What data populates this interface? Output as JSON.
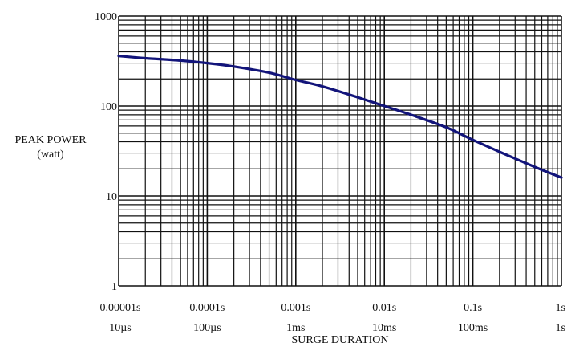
{
  "chart_data": {
    "type": "line",
    "title": "",
    "xlabel": "SURGE DURATION",
    "ylabel": [
      "PEAK POWER",
      "(watt)"
    ],
    "x_scale": "log",
    "y_scale": "log",
    "xlim": [
      1e-05,
      1
    ],
    "ylim": [
      1,
      1000
    ],
    "grid": true,
    "x_ticks": [
      {
        "value": 1e-05,
        "label": "0.00001s",
        "sublabel": "10µs"
      },
      {
        "value": 0.0001,
        "label": "0.0001s",
        "sublabel": "100µs"
      },
      {
        "value": 0.001,
        "label": "0.001s",
        "sublabel": "1ms"
      },
      {
        "value": 0.01,
        "label": "0.01s",
        "sublabel": "10ms"
      },
      {
        "value": 0.1,
        "label": "0.1s",
        "sublabel": "100ms"
      },
      {
        "value": 1,
        "label": "1s",
        "sublabel": "1s"
      }
    ],
    "y_ticks": [
      {
        "value": 1,
        "label": "1"
      },
      {
        "value": 10,
        "label": "10"
      },
      {
        "value": 100,
        "label": "100"
      },
      {
        "value": 1000,
        "label": "1000"
      }
    ],
    "series": [
      {
        "color": "#12147a",
        "points": [
          {
            "x": 1e-05,
            "y": 360
          },
          {
            "x": 2e-05,
            "y": 340
          },
          {
            "x": 5e-05,
            "y": 320
          },
          {
            "x": 0.0001,
            "y": 300
          },
          {
            "x": 0.0002,
            "y": 275
          },
          {
            "x": 0.0005,
            "y": 235
          },
          {
            "x": 0.001,
            "y": 195
          },
          {
            "x": 0.002,
            "y": 165
          },
          {
            "x": 0.005,
            "y": 125
          },
          {
            "x": 0.01,
            "y": 100
          },
          {
            "x": 0.02,
            "y": 80
          },
          {
            "x": 0.05,
            "y": 58
          },
          {
            "x": 0.1,
            "y": 42
          },
          {
            "x": 0.2,
            "y": 31
          },
          {
            "x": 0.5,
            "y": 21
          },
          {
            "x": 1,
            "y": 16
          }
        ]
      }
    ]
  },
  "colors": {
    "curve": "#12147a",
    "grid": "#111111",
    "text": "#111111"
  }
}
